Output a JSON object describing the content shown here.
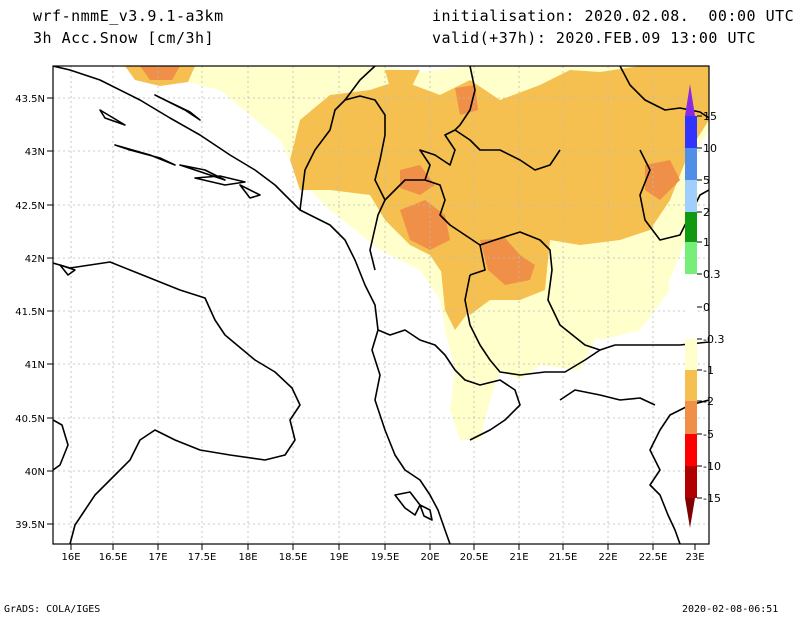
{
  "header": {
    "model": "wrf-nmmE_v3.9.1-a3km",
    "field": "3h Acc.Snow [cm/3h]",
    "init": "initialisation: 2020.02.08.  00:00 UTC",
    "valid": "valid(+37h): 2020.FEB.09 13:00 UTC"
  },
  "map": {
    "lat_labels": [
      "43.5N",
      "43N",
      "42.5N",
      "42N",
      "41.5N",
      "41N",
      "40.5N",
      "40N",
      "39.5N"
    ],
    "lon_labels": [
      "16E",
      "16.5E",
      "17E",
      "17.5E",
      "18E",
      "18.5E",
      "19E",
      "19.5E",
      "20E",
      "20.5E",
      "21E",
      "21.5E",
      "22E",
      "22.5E",
      "23E"
    ],
    "lat_range": [
      39.4,
      43.8
    ],
    "lon_range": [
      15.95,
      23.0
    ],
    "grid": true,
    "fill_colors": {
      "pale": "#ffffcc",
      "light_orange": "#f5c050",
      "orange": "#f09048"
    }
  },
  "colorbar": {
    "labels": [
      "15",
      "10",
      "5",
      "2",
      "1",
      "0.3",
      "0",
      "-0.3",
      "-1",
      "-2",
      "-5",
      "-10",
      "-15"
    ],
    "colors": [
      "#8a2be2",
      "#3333ff",
      "#4f8fe8",
      "#9fcfff",
      "#119911",
      "#77ee77",
      "#ffffff",
      "#ffffff",
      "#ffffcc",
      "#f5c050",
      "#f09048",
      "#ff0000",
      "#b00000",
      "#800000"
    ]
  },
  "footer": {
    "left": "GrADS: COLA/IGES",
    "right": "2020-02-08-06:51"
  }
}
